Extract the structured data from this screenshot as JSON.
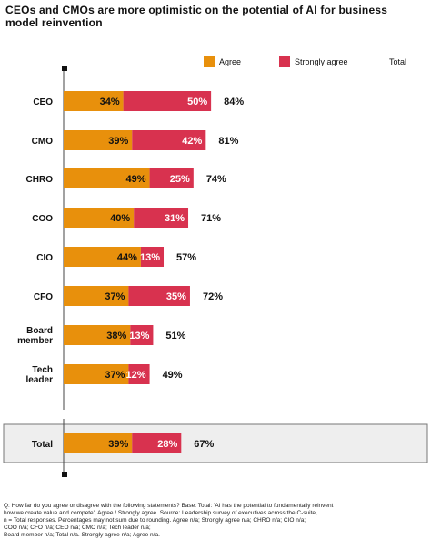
{
  "title": "CEOs and CMOs are more optimistic on the potential of AI for business model reinvention",
  "legend": [
    {
      "label": "Agree",
      "color": "#e8900c"
    },
    {
      "label": "Strongly agree",
      "color": "#d8324f"
    },
    {
      "label": "Total",
      "color": ""
    }
  ],
  "chart_data": {
    "type": "bar",
    "stacked": true,
    "orientation": "horizontal",
    "categories": [
      "CEO",
      "CMO",
      "CHRO",
      "COO",
      "CIO",
      "CFO",
      "Board member",
      "Tech leader",
      "Total"
    ],
    "series": [
      {
        "name": "Agree",
        "color": "#e8900c",
        "values": [
          34,
          39,
          49,
          40,
          44,
          37,
          38,
          37,
          39
        ]
      },
      {
        "name": "Strongly agree",
        "color": "#d8324f",
        "values": [
          50,
          42,
          25,
          31,
          13,
          35,
          13,
          12,
          28
        ]
      }
    ],
    "totals": [
      84,
      81,
      74,
      71,
      57,
      72,
      51,
      49,
      67
    ],
    "xlim": [
      0,
      100
    ],
    "grid": false,
    "legend_position": "top-right"
  },
  "footnotes": [
    "Q: How far do you agree or disagree with the following statements? Base: Total: 'AI has the potential to fundamentally reinvent",
    "how we create value and compete', Agree / Strongly agree. Source: Leadership survey of executives across the C-suite,",
    "n = Total responses. Percentages may not sum due to rounding. Agree n/a; Strongly agree n/a; CHRO n/a; CIO n/a;",
    "COO n/a; CFO n/a; CEO n/a; CMO n/a; Tech leader n/a;",
    "Board member n/a; Total n/a. Strongly agree n/a; Agree n/a."
  ]
}
